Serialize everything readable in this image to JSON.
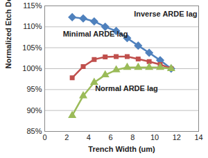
{
  "chart_data": {
    "type": "line",
    "x_label": "Trench Width (um)",
    "y_label": "Normalized Etch Depth",
    "x": [
      2.5,
      3.5,
      4.5,
      5.5,
      6.5,
      7.5,
      8.5,
      9.5,
      10.5,
      11.5
    ],
    "series": [
      {
        "name": "Inverse ARDE lag",
        "color": "#4f81bd",
        "marker": "diamond",
        "values": [
          112.3,
          112.0,
          111.3,
          110.0,
          109.0,
          107.3,
          105.5,
          103.8,
          102.0,
          100.0
        ]
      },
      {
        "name": "Minimal ARDE lag",
        "color": "#c0504d",
        "marker": "square",
        "values": [
          97.8,
          100.5,
          102.2,
          102.8,
          102.9,
          102.9,
          102.3,
          101.7,
          101.0,
          100.0
        ]
      },
      {
        "name": "Normal ARDE lag",
        "color": "#9bbb59",
        "marker": "triangle",
        "values": [
          88.8,
          93.5,
          96.7,
          98.5,
          99.7,
          100.3,
          100.3,
          100.3,
          100.3,
          100.0
        ]
      }
    ],
    "xlim": [
      0,
      14
    ],
    "xticks": [
      0,
      2,
      4,
      6,
      8,
      10,
      12,
      14
    ],
    "ylim": [
      85,
      115
    ],
    "yticks": [
      {
        "value": 85,
        "label": "85%"
      },
      {
        "value": 90,
        "label": "90%"
      },
      {
        "value": 95,
        "label": "95%"
      },
      {
        "value": 100,
        "label": "100%"
      },
      {
        "value": 105,
        "label": "105%"
      },
      {
        "value": 110,
        "label": "110%"
      },
      {
        "value": 115,
        "label": "115%"
      }
    ],
    "grid": true
  }
}
